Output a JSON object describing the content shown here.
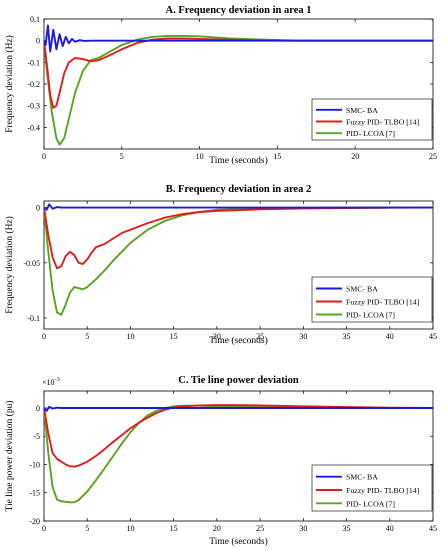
{
  "chart_data": [
    {
      "type": "line",
      "title": "A. Frequency deviation in area 1",
      "xlabel": "Time (seconds)",
      "ylabel": "Frequency deviation (Hz)",
      "xlim": [
        0,
        25
      ],
      "ylim": [
        -0.5,
        0.1
      ],
      "xticks": [
        0,
        5,
        10,
        15,
        20,
        25
      ],
      "yticks": [
        0.1,
        0,
        -0.1,
        -0.2,
        -0.3,
        -0.4
      ],
      "ytick_labels": [
        "0.1",
        "0",
        "-0.1",
        "-0.2",
        "-0.3",
        "-0.4"
      ],
      "legend_position": "center-right",
      "series": [
        {
          "name": "SMC- BA",
          "color": "#1a1adc",
          "x": [
            0,
            0.1,
            0.25,
            0.4,
            0.6,
            0.8,
            1.0,
            1.2,
            1.4,
            1.6,
            1.8,
            2.0,
            2.3,
            2.6,
            3.0,
            4,
            25
          ],
          "y": [
            0,
            -0.02,
            0.07,
            -0.05,
            0.05,
            -0.04,
            0.03,
            -0.025,
            0.018,
            -0.012,
            0.008,
            -0.005,
            0.002,
            -0.001,
            0,
            0,
            0
          ]
        },
        {
          "name": "Fuzzy PID- TLBO [14]",
          "color": "#e21b1b",
          "x": [
            0,
            0.2,
            0.4,
            0.6,
            0.8,
            1.0,
            1.3,
            1.6,
            2.0,
            2.5,
            3.0,
            3.5,
            4.0,
            5.0,
            6.0,
            7.0,
            8.0,
            9.0,
            10,
            12,
            14,
            16,
            18,
            20,
            25
          ],
          "y": [
            0,
            -0.12,
            -0.25,
            -0.31,
            -0.3,
            -0.24,
            -0.15,
            -0.1,
            -0.08,
            -0.085,
            -0.095,
            -0.09,
            -0.075,
            -0.04,
            -0.01,
            0.005,
            0.01,
            0.01,
            0.008,
            0.004,
            0.001,
            0,
            0,
            0,
            0
          ]
        },
        {
          "name": "PID- LCOA [7]",
          "color": "#5aa321",
          "x": [
            0,
            0.2,
            0.5,
            0.8,
            1.0,
            1.3,
            1.6,
            2.0,
            2.5,
            3.0,
            3.5,
            4.0,
            5.0,
            6.0,
            7.0,
            8.0,
            9.0,
            10,
            11,
            12,
            14,
            16,
            18,
            20,
            25
          ],
          "y": [
            0,
            -0.15,
            -0.33,
            -0.45,
            -0.48,
            -0.45,
            -0.36,
            -0.24,
            -0.14,
            -0.09,
            -0.08,
            -0.06,
            -0.02,
            0.005,
            0.018,
            0.022,
            0.022,
            0.02,
            0.015,
            0.01,
            0.005,
            0.001,
            0,
            0,
            0
          ]
        }
      ]
    },
    {
      "type": "line",
      "title": "B. Frequency deviation in area 2",
      "xlabel": "Time (seconds)",
      "ylabel": "Frequency deviation (Hz)",
      "xlim": [
        0,
        45
      ],
      "ylim": [
        -0.11,
        0.006
      ],
      "xticks": [
        0,
        5,
        10,
        15,
        20,
        25,
        30,
        35,
        40,
        45
      ],
      "yticks": [
        0,
        -0.05,
        -0.1
      ],
      "ytick_labels": [
        "0",
        "-0.05",
        "-0.1"
      ],
      "legend_position": "bottom-right",
      "series": [
        {
          "name": "SMC- BA",
          "color": "#1a1adc",
          "x": [
            0,
            0.3,
            0.6,
            1.0,
            1.5,
            2.0,
            45
          ],
          "y": [
            0,
            -0.002,
            0.003,
            -0.001,
            0.0005,
            0,
            0
          ]
        },
        {
          "name": "Fuzzy PID- TLBO [14]",
          "color": "#e21b1b",
          "x": [
            0,
            0.5,
            1.0,
            1.5,
            2.0,
            2.5,
            3.0,
            3.5,
            4.0,
            4.5,
            5.0,
            5.5,
            6.0,
            7.0,
            8.0,
            9.0,
            10,
            12,
            14,
            16,
            18,
            20,
            25,
            30,
            35,
            40,
            45
          ],
          "y": [
            0,
            -0.025,
            -0.045,
            -0.055,
            -0.053,
            -0.044,
            -0.04,
            -0.043,
            -0.05,
            -0.051,
            -0.047,
            -0.041,
            -0.036,
            -0.033,
            -0.028,
            -0.023,
            -0.02,
            -0.014,
            -0.009,
            -0.006,
            -0.004,
            -0.003,
            -0.0015,
            -0.0007,
            -0.0003,
            -0.0001,
            0
          ]
        },
        {
          "name": "PID- LCOA [7]",
          "color": "#5aa321",
          "x": [
            0,
            0.5,
            1.0,
            1.5,
            2.0,
            2.5,
            3.0,
            3.5,
            4.0,
            4.5,
            5.0,
            6.0,
            7.0,
            8.0,
            9.0,
            10,
            12,
            14,
            16,
            18,
            20,
            25,
            30,
            35,
            40,
            45
          ],
          "y": [
            0,
            -0.04,
            -0.075,
            -0.095,
            -0.097,
            -0.088,
            -0.077,
            -0.072,
            -0.073,
            -0.074,
            -0.072,
            -0.065,
            -0.057,
            -0.048,
            -0.04,
            -0.032,
            -0.02,
            -0.012,
            -0.007,
            -0.004,
            -0.002,
            -0.0008,
            -0.0003,
            -0.0001,
            0,
            0
          ]
        }
      ]
    },
    {
      "type": "line",
      "title": "C. Tie line power deviation",
      "xlabel": "Time (seconds)",
      "ylabel": "Tie line power deviation (pu)",
      "multiplier": "×10",
      "multiplier_exp": "-3",
      "xlim": [
        0,
        45
      ],
      "ylim": [
        -20,
        3
      ],
      "xticks": [
        0,
        5,
        10,
        15,
        20,
        25,
        30,
        35,
        40,
        45
      ],
      "yticks": [
        0,
        -5,
        -10,
        -15,
        -20
      ],
      "ytick_labels": [
        "0",
        "-5",
        "-10",
        "-15",
        "-20"
      ],
      "legend_position": "bottom-right",
      "series": [
        {
          "name": "SMC- BA",
          "color": "#1a1adc",
          "x": [
            0,
            0.3,
            0.6,
            1.0,
            1.5,
            2.0,
            45
          ],
          "y": [
            0,
            -0.5,
            0.2,
            -0.1,
            0.05,
            0,
            0
          ]
        },
        {
          "name": "Fuzzy PID- TLBO [14]",
          "color": "#e21b1b",
          "x": [
            0,
            0.5,
            1.0,
            1.5,
            2.0,
            2.5,
            3.0,
            3.5,
            4.0,
            5.0,
            6.0,
            7.0,
            8.0,
            9.0,
            10,
            11,
            12,
            13,
            14,
            15,
            16,
            18,
            20,
            22,
            25,
            30,
            35,
            40,
            45
          ],
          "y": [
            0,
            -4.5,
            -8,
            -9,
            -9.5,
            -10,
            -10.3,
            -10.4,
            -10.2,
            -9.5,
            -8.5,
            -7.3,
            -6,
            -4.8,
            -3.6,
            -2.6,
            -1.7,
            -0.9,
            -0.3,
            0.1,
            0.3,
            0.45,
            0.5,
            0.5,
            0.45,
            0.3,
            0.15,
            0.05,
            0
          ]
        },
        {
          "name": "PID- LCOA [7]",
          "color": "#5aa321",
          "x": [
            0,
            0.5,
            1.0,
            1.5,
            2.0,
            2.5,
            3.0,
            3.5,
            4.0,
            5.0,
            6.0,
            7.0,
            8.0,
            9.0,
            10,
            11,
            12,
            13,
            14,
            15,
            16,
            18,
            20,
            25,
            30,
            35,
            40,
            45
          ],
          "y": [
            0,
            -8,
            -14,
            -16.2,
            -16.5,
            -16.6,
            -16.7,
            -16.7,
            -16.3,
            -14.8,
            -12.8,
            -10.7,
            -8.5,
            -6.3,
            -4.3,
            -2.6,
            -1.3,
            -0.5,
            0,
            0.3,
            0.4,
            0.4,
            0.3,
            0.15,
            0.05,
            0.01,
            0,
            0
          ]
        }
      ]
    }
  ]
}
